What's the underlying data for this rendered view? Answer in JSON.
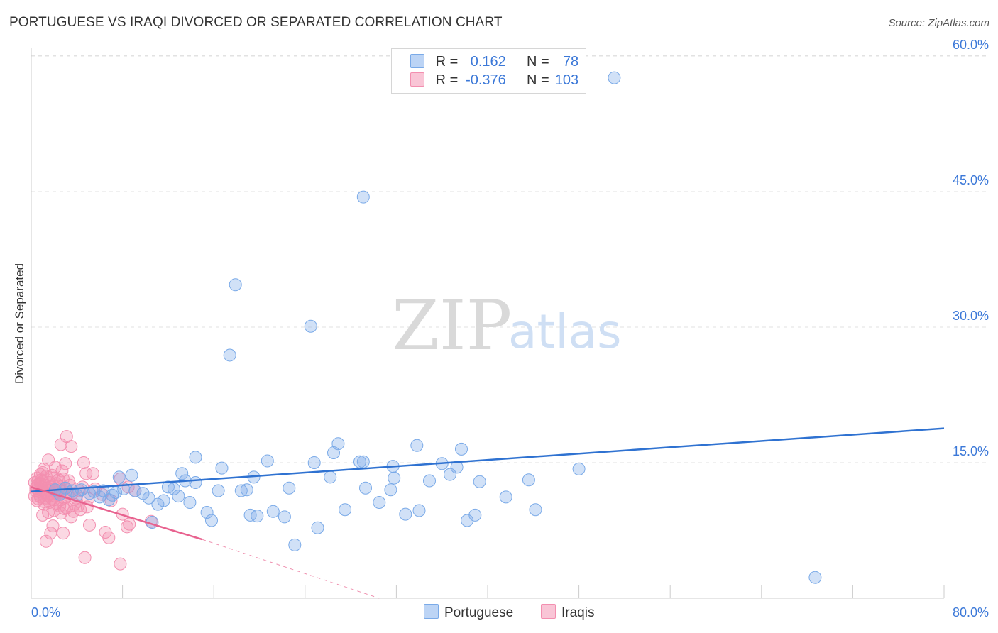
{
  "title": "PORTUGUESE VS IRAQI DIVORCED OR SEPARATED CORRELATION CHART",
  "source": "Source: ZipAtlas.com",
  "colors": {
    "portuguese": "#7aaae8",
    "portuguese_line": "#2f72d1",
    "iraqis": "#f38fb0",
    "iraqis_line": "#e8628f",
    "accent_text": "#3b78d8"
  },
  "legend": {
    "r_label": "R =",
    "n_label": "N =",
    "portuguese": {
      "r": "0.162",
      "n": "78"
    },
    "iraqis": {
      "r": "-0.376",
      "n": "103"
    }
  },
  "bottom_legend": {
    "portuguese": "Portuguese",
    "iraqis": "Iraqis"
  },
  "watermark": {
    "zip": "ZIP",
    "atlas": "atlas"
  },
  "chart_data": {
    "type": "scatter",
    "title": "PORTUGUESE VS IRAQI DIVORCED OR SEPARATED CORRELATION CHART",
    "xlabel": "",
    "ylabel": "Divorced or Separated",
    "xlim": [
      0,
      80
    ],
    "ylim": [
      0,
      62
    ],
    "x_tick_labels": {
      "min": "0.0%",
      "max": "80.0%"
    },
    "y_ticks": [
      {
        "value": 15,
        "label": "15.0%"
      },
      {
        "value": 30,
        "label": "30.0%"
      },
      {
        "value": 45,
        "label": "45.0%"
      },
      {
        "value": 60,
        "label": "60.0%"
      }
    ],
    "grid": true,
    "series": [
      {
        "name": "Portuguese",
        "trend": {
          "x0": 0,
          "y0": 11.8,
          "x1": 80,
          "y1": 18.8
        },
        "points": [
          [
            51.1,
            57.6
          ],
          [
            29.1,
            44.4
          ],
          [
            17.9,
            34.7
          ],
          [
            24.5,
            30.1
          ],
          [
            17.4,
            26.9
          ],
          [
            68.7,
            2.3
          ],
          [
            14.4,
            15.6
          ],
          [
            26.5,
            16.1
          ],
          [
            26.9,
            17.1
          ],
          [
            28.8,
            15.1
          ],
          [
            29.1,
            15.1
          ],
          [
            33.8,
            16.9
          ],
          [
            37.7,
            16.5
          ],
          [
            20.7,
            15.2
          ],
          [
            24.8,
            15.0
          ],
          [
            16.7,
            14.4
          ],
          [
            31.7,
            14.6
          ],
          [
            36.0,
            14.9
          ],
          [
            37.3,
            14.5
          ],
          [
            48.0,
            14.3
          ],
          [
            4.4,
            12.0
          ],
          [
            5.5,
            11.8
          ],
          [
            6.3,
            11.9
          ],
          [
            7.1,
            11.4
          ],
          [
            7.7,
            13.4
          ],
          [
            8.8,
            13.6
          ],
          [
            9.1,
            11.9
          ],
          [
            9.8,
            11.6
          ],
          [
            10.3,
            11.1
          ],
          [
            11.6,
            10.8
          ],
          [
            11.1,
            10.4
          ],
          [
            12.0,
            12.3
          ],
          [
            12.5,
            12.1
          ],
          [
            13.2,
            13.8
          ],
          [
            13.5,
            13.0
          ],
          [
            14.4,
            12.8
          ],
          [
            16.4,
            11.9
          ],
          [
            18.4,
            11.9
          ],
          [
            18.9,
            12.0
          ],
          [
            19.5,
            13.4
          ],
          [
            22.6,
            12.2
          ],
          [
            26.2,
            13.4
          ],
          [
            29.3,
            12.2
          ],
          [
            31.5,
            12.0
          ],
          [
            31.8,
            13.3
          ],
          [
            34.9,
            13.0
          ],
          [
            36.7,
            13.7
          ],
          [
            39.3,
            12.9
          ],
          [
            41.6,
            11.2
          ],
          [
            43.6,
            13.1
          ],
          [
            5.1,
            11.6
          ],
          [
            6.8,
            10.9
          ],
          [
            8.1,
            12.1
          ],
          [
            10.6,
            8.4
          ],
          [
            13.9,
            10.6
          ],
          [
            15.4,
            9.5
          ],
          [
            15.8,
            8.6
          ],
          [
            19.2,
            9.2
          ],
          [
            19.8,
            9.1
          ],
          [
            21.2,
            9.6
          ],
          [
            22.2,
            9.0
          ],
          [
            25.1,
            7.8
          ],
          [
            27.5,
            9.8
          ],
          [
            30.5,
            10.6
          ],
          [
            32.8,
            9.3
          ],
          [
            34.0,
            9.7
          ],
          [
            38.2,
            8.6
          ],
          [
            38.9,
            9.2
          ],
          [
            44.2,
            9.8
          ],
          [
            23.1,
            5.9
          ],
          [
            2.5,
            11.5
          ],
          [
            3.0,
            12.2
          ],
          [
            3.6,
            11.9
          ],
          [
            4.0,
            11.4
          ],
          [
            2.1,
            12.0
          ],
          [
            6.0,
            11.2
          ],
          [
            7.4,
            11.7
          ],
          [
            12.9,
            11.3
          ]
        ]
      },
      {
        "name": "Iraqis",
        "trend": {
          "x0": 0,
          "y0": 12.3,
          "x1": 15,
          "y1": 6.5
        },
        "trend_dashed": {
          "x0": 15,
          "y0": 6.5,
          "x1": 30.5,
          "y1": 0.0
        },
        "points": [
          [
            3.1,
            17.9
          ],
          [
            2.6,
            17.0
          ],
          [
            3.5,
            16.8
          ],
          [
            1.5,
            15.3
          ],
          [
            4.6,
            15.0
          ],
          [
            3.0,
            14.9
          ],
          [
            2.1,
            14.5
          ],
          [
            1.1,
            14.3
          ],
          [
            2.7,
            14.1
          ],
          [
            4.8,
            13.8
          ],
          [
            0.8,
            13.7
          ],
          [
            1.3,
            13.5
          ],
          [
            2.0,
            13.3
          ],
          [
            2.8,
            13.2
          ],
          [
            0.6,
            13.0
          ],
          [
            1.0,
            12.9
          ],
          [
            1.6,
            12.8
          ],
          [
            2.2,
            12.7
          ],
          [
            3.4,
            12.5
          ],
          [
            0.5,
            12.4
          ],
          [
            0.9,
            12.3
          ],
          [
            1.4,
            12.2
          ],
          [
            1.9,
            12.1
          ],
          [
            2.5,
            12.0
          ],
          [
            0.4,
            11.9
          ],
          [
            0.7,
            11.8
          ],
          [
            1.2,
            11.7
          ],
          [
            1.7,
            11.6
          ],
          [
            2.3,
            11.5
          ],
          [
            3.2,
            11.4
          ],
          [
            0.3,
            11.3
          ],
          [
            0.8,
            11.2
          ],
          [
            1.3,
            11.1
          ],
          [
            1.8,
            11.0
          ],
          [
            2.6,
            10.9
          ],
          [
            0.5,
            10.8
          ],
          [
            1.1,
            10.7
          ],
          [
            1.6,
            10.6
          ],
          [
            2.2,
            10.5
          ],
          [
            3.8,
            10.4
          ],
          [
            4.1,
            10.2
          ],
          [
            4.9,
            10.1
          ],
          [
            2.9,
            9.9
          ],
          [
            2.0,
            9.7
          ],
          [
            1.5,
            9.5
          ],
          [
            2.6,
            9.4
          ],
          [
            1.0,
            9.2
          ],
          [
            3.5,
            9.0
          ],
          [
            7.8,
            13.2
          ],
          [
            8.5,
            12.3
          ],
          [
            9.1,
            11.9
          ],
          [
            5.6,
            12.1
          ],
          [
            6.2,
            11.5
          ],
          [
            5.0,
            11.0
          ],
          [
            7.0,
            10.8
          ],
          [
            8.0,
            9.3
          ],
          [
            10.5,
            8.5
          ],
          [
            8.6,
            8.2
          ],
          [
            8.4,
            7.9
          ],
          [
            6.5,
            7.3
          ],
          [
            6.8,
            6.7
          ],
          [
            5.1,
            8.1
          ],
          [
            1.9,
            8.0
          ],
          [
            1.7,
            7.2
          ],
          [
            2.8,
            7.2
          ],
          [
            1.3,
            6.3
          ],
          [
            4.7,
            4.5
          ],
          [
            7.8,
            3.8
          ],
          [
            0.6,
            12.6
          ],
          [
            0.9,
            12.0
          ],
          [
            1.5,
            11.9
          ],
          [
            2.4,
            12.4
          ],
          [
            3.0,
            12.1
          ],
          [
            0.4,
            12.2
          ],
          [
            1.2,
            12.5
          ],
          [
            1.8,
            12.3
          ],
          [
            2.7,
            11.8
          ],
          [
            3.6,
            11.6
          ],
          [
            0.7,
            11.5
          ],
          [
            1.4,
            11.4
          ],
          [
            2.1,
            11.3
          ],
          [
            2.9,
            11.1
          ],
          [
            0.5,
            13.3
          ],
          [
            1.0,
            13.9
          ],
          [
            1.8,
            13.6
          ],
          [
            2.4,
            13.1
          ],
          [
            3.3,
            13.0
          ],
          [
            4.2,
            11.9
          ],
          [
            3.9,
            11.1
          ],
          [
            4.5,
            12.3
          ],
          [
            0.3,
            12.8
          ],
          [
            0.6,
            11.0
          ],
          [
            1.1,
            10.4
          ],
          [
            2.0,
            10.9
          ],
          [
            2.5,
            10.2
          ],
          [
            3.1,
            10.0
          ],
          [
            3.7,
            9.6
          ],
          [
            4.3,
            9.8
          ],
          [
            0.8,
            12.7
          ],
          [
            1.6,
            12.0
          ],
          [
            2.3,
            11.7
          ],
          [
            0.9,
            13.1
          ],
          [
            5.4,
            13.8
          ]
        ]
      }
    ]
  }
}
